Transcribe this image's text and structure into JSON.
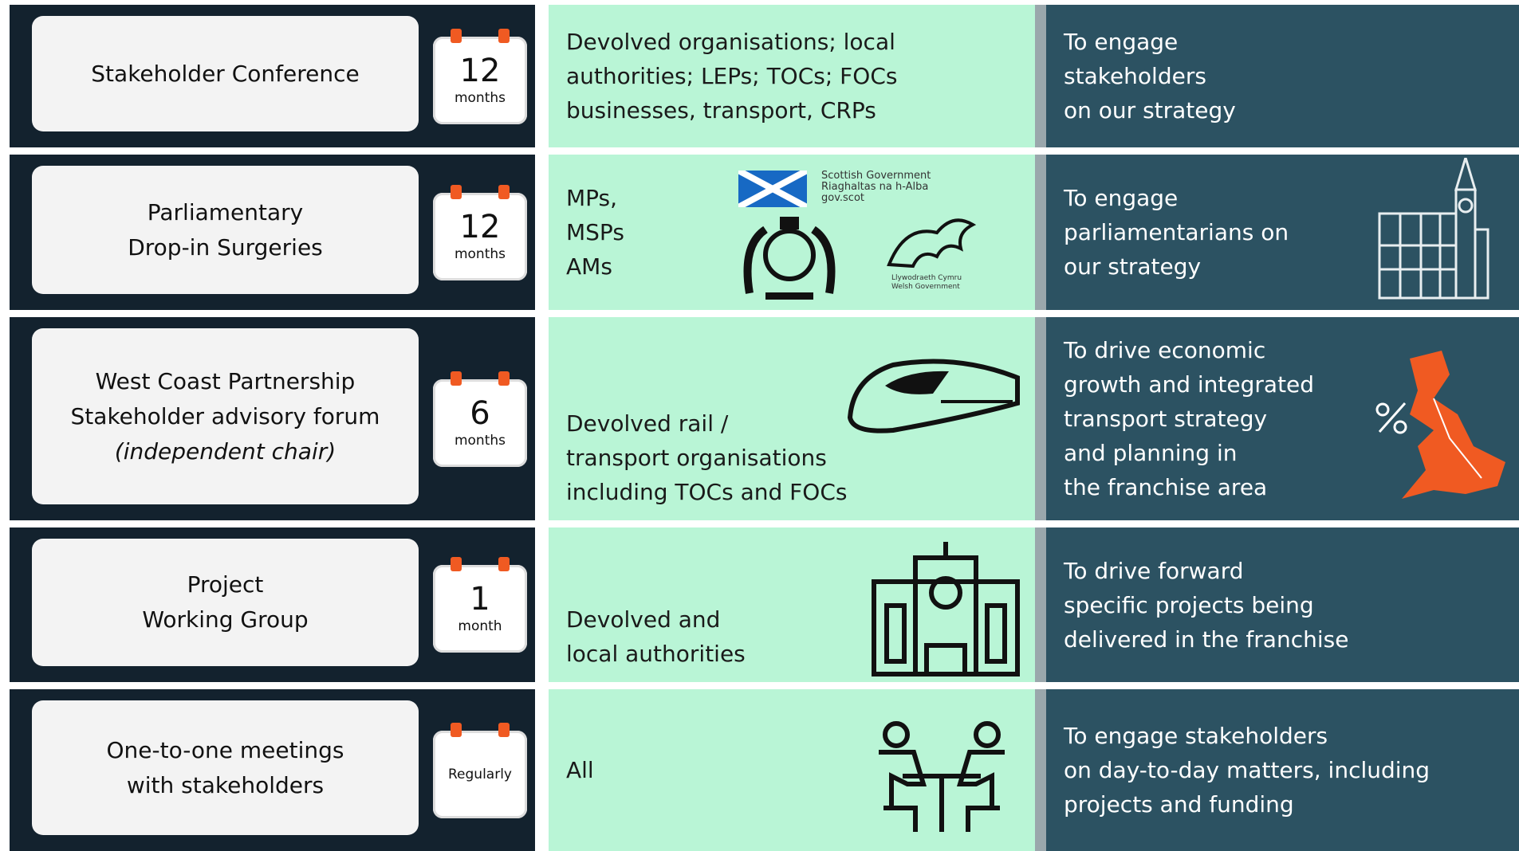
{
  "rows": [
    {
      "name": [
        "Stakeholder Conference"
      ],
      "frequency": {
        "number": "12",
        "unit": "months"
      },
      "audience": [
        "Devolved organisations; local",
        "authorities; LEPs; TOCs; FOCs",
        "businesses,  transport, CRPs"
      ],
      "purpose": [
        "To engage",
        "stakeholders",
        "on our strategy"
      ]
    },
    {
      "name": [
        "Parliamentary",
        "Drop-in Surgeries"
      ],
      "frequency": {
        "number": "12",
        "unit": "months"
      },
      "audience": [
        "MPs,",
        "MSPs",
        "AMs"
      ],
      "logos": {
        "scottish": [
          "Scottish Government",
          "Riaghaltas na h-Alba",
          "gov.scot"
        ],
        "welsh": [
          "Llywodraeth Cymru",
          "Welsh Government"
        ]
      },
      "purpose": [
        "To engage",
        "parliamentarians on",
        "our strategy"
      ]
    },
    {
      "name": [
        "West Coast Partnership",
        "Stakeholder advisory forum"
      ],
      "note": "(independent chair)",
      "frequency": {
        "number": "6",
        "unit": "months"
      },
      "audience": [
        "Devolved rail /",
        "transport organisations",
        "including TOCs and FOCs"
      ],
      "purpose": [
        "To drive economic",
        "growth and integrated",
        "transport strategy",
        "and planning in",
        "the franchise area"
      ]
    },
    {
      "name": [
        "Project",
        "Working Group"
      ],
      "frequency": {
        "number": "1",
        "unit": "month"
      },
      "audience": [
        "Devolved and",
        "local authorities"
      ],
      "purpose": [
        "To drive forward",
        "specific projects being",
        "delivered in the franchise"
      ]
    },
    {
      "name": [
        "One-to-one meetings",
        "with stakeholders"
      ],
      "frequency": {
        "label": "Regularly"
      },
      "audience": [
        "All"
      ],
      "purpose": [
        "To engage stakeholders",
        "on day-to-day matters, including",
        "projects and funding"
      ]
    }
  ]
}
